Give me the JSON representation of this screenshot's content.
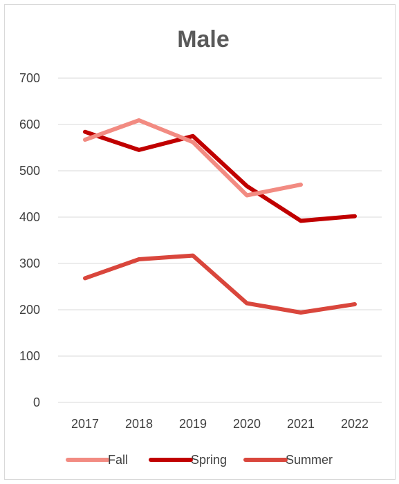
{
  "chart_data": {
    "type": "line",
    "title": "Male",
    "xlabel": "",
    "ylabel": "",
    "categories": [
      "2017",
      "2018",
      "2019",
      "2020",
      "2021",
      "2022"
    ],
    "ylim": [
      0,
      700
    ],
    "yticks": [
      "0",
      "100",
      "200",
      "300",
      "400",
      "500",
      "600",
      "700"
    ],
    "grid": true,
    "legend_position": "bottom",
    "series": [
      {
        "name": "Fall",
        "color": "#f28b82",
        "values": [
          567,
          609,
          562,
          447,
          470,
          null
        ]
      },
      {
        "name": "Spring",
        "color": "#c00000",
        "values": [
          584,
          545,
          575,
          467,
          392,
          402
        ]
      },
      {
        "name": "Summer",
        "color": "#d9463c",
        "values": [
          268,
          309,
          317,
          214,
          194,
          212
        ]
      }
    ]
  }
}
